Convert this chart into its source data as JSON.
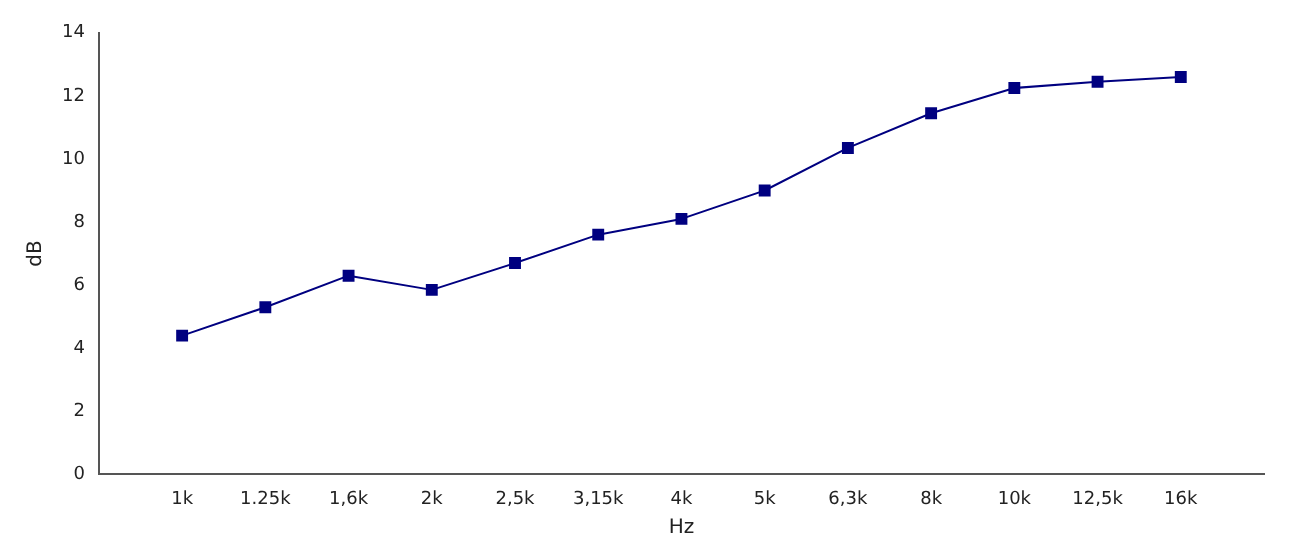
{
  "chart_data": {
    "type": "line",
    "xlabel": "Hz",
    "ylabel": "dB",
    "categories": [
      null,
      "1k",
      "1.25k",
      "1,6k",
      "2k",
      "2,5k",
      "3,15k",
      "4k",
      "5k",
      "6,3k",
      "8k",
      "10k",
      "12,5k",
      "16k",
      null
    ],
    "series": [
      {
        "color": "#000080",
        "values": [
          null,
          4.4,
          5.3,
          6.3,
          5.85,
          6.7,
          7.6,
          8.1,
          9.0,
          10.35,
          11.45,
          12.25,
          12.45,
          12.6,
          null
        ]
      }
    ],
    "ylim": [
      0,
      14
    ],
    "yticks": [
      0,
      2,
      4,
      6,
      8,
      10,
      12,
      14
    ],
    "marker": "square",
    "line_style": "solid",
    "grid": false,
    "legend": false
  }
}
